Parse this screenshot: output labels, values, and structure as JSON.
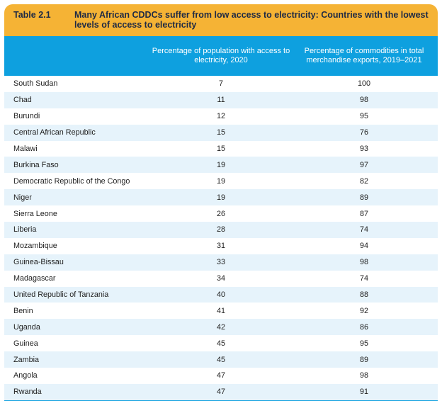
{
  "table": {
    "label": "Table 2.1",
    "title": "Many African CDDCs suffer from low access to electricity: Countries with the lowest levels of access to electricity",
    "col1_header": "Percentage of population with access to electricity, 2020",
    "col2_header": "Percentage of commodities in total merchandise exports, 2019–2021",
    "rows": [
      {
        "country": "South Sudan",
        "electricity": "7",
        "commodities": "100"
      },
      {
        "country": "Chad",
        "electricity": "11",
        "commodities": "98"
      },
      {
        "country": "Burundi",
        "electricity": "12",
        "commodities": "95"
      },
      {
        "country": "Central African Republic",
        "electricity": "15",
        "commodities": "76"
      },
      {
        "country": "Malawi",
        "electricity": "15",
        "commodities": "93"
      },
      {
        "country": "Burkina Faso",
        "electricity": "19",
        "commodities": "97"
      },
      {
        "country": "Democratic Republic of the Congo",
        "electricity": "19",
        "commodities": "82"
      },
      {
        "country": "Niger",
        "electricity": "19",
        "commodities": "89"
      },
      {
        "country": "Sierra Leone",
        "electricity": "26",
        "commodities": "87"
      },
      {
        "country": "Liberia",
        "electricity": "28",
        "commodities": "74"
      },
      {
        "country": "Mozambique",
        "electricity": "31",
        "commodities": "94"
      },
      {
        "country": "Guinea-Bissau",
        "electricity": "33",
        "commodities": "98"
      },
      {
        "country": "Madagascar",
        "electricity": "34",
        "commodities": "74"
      },
      {
        "country": "United Republic of Tanzania",
        "electricity": "40",
        "commodities": "88"
      },
      {
        "country": "Benin",
        "electricity": "41",
        "commodities": "92"
      },
      {
        "country": "Uganda",
        "electricity": "42",
        "commodities": "86"
      },
      {
        "country": "Guinea",
        "electricity": "45",
        "commodities": "95"
      },
      {
        "country": "Zambia",
        "electricity": "45",
        "commodities": "89"
      },
      {
        "country": "Angola",
        "electricity": "47",
        "commodities": "98"
      },
      {
        "country": "Rwanda",
        "electricity": "47",
        "commodities": "91"
      }
    ]
  },
  "colors": {
    "title_bar": "#f5b335",
    "header_bar": "#0ea0df",
    "stripe": "#e6f3fb"
  }
}
